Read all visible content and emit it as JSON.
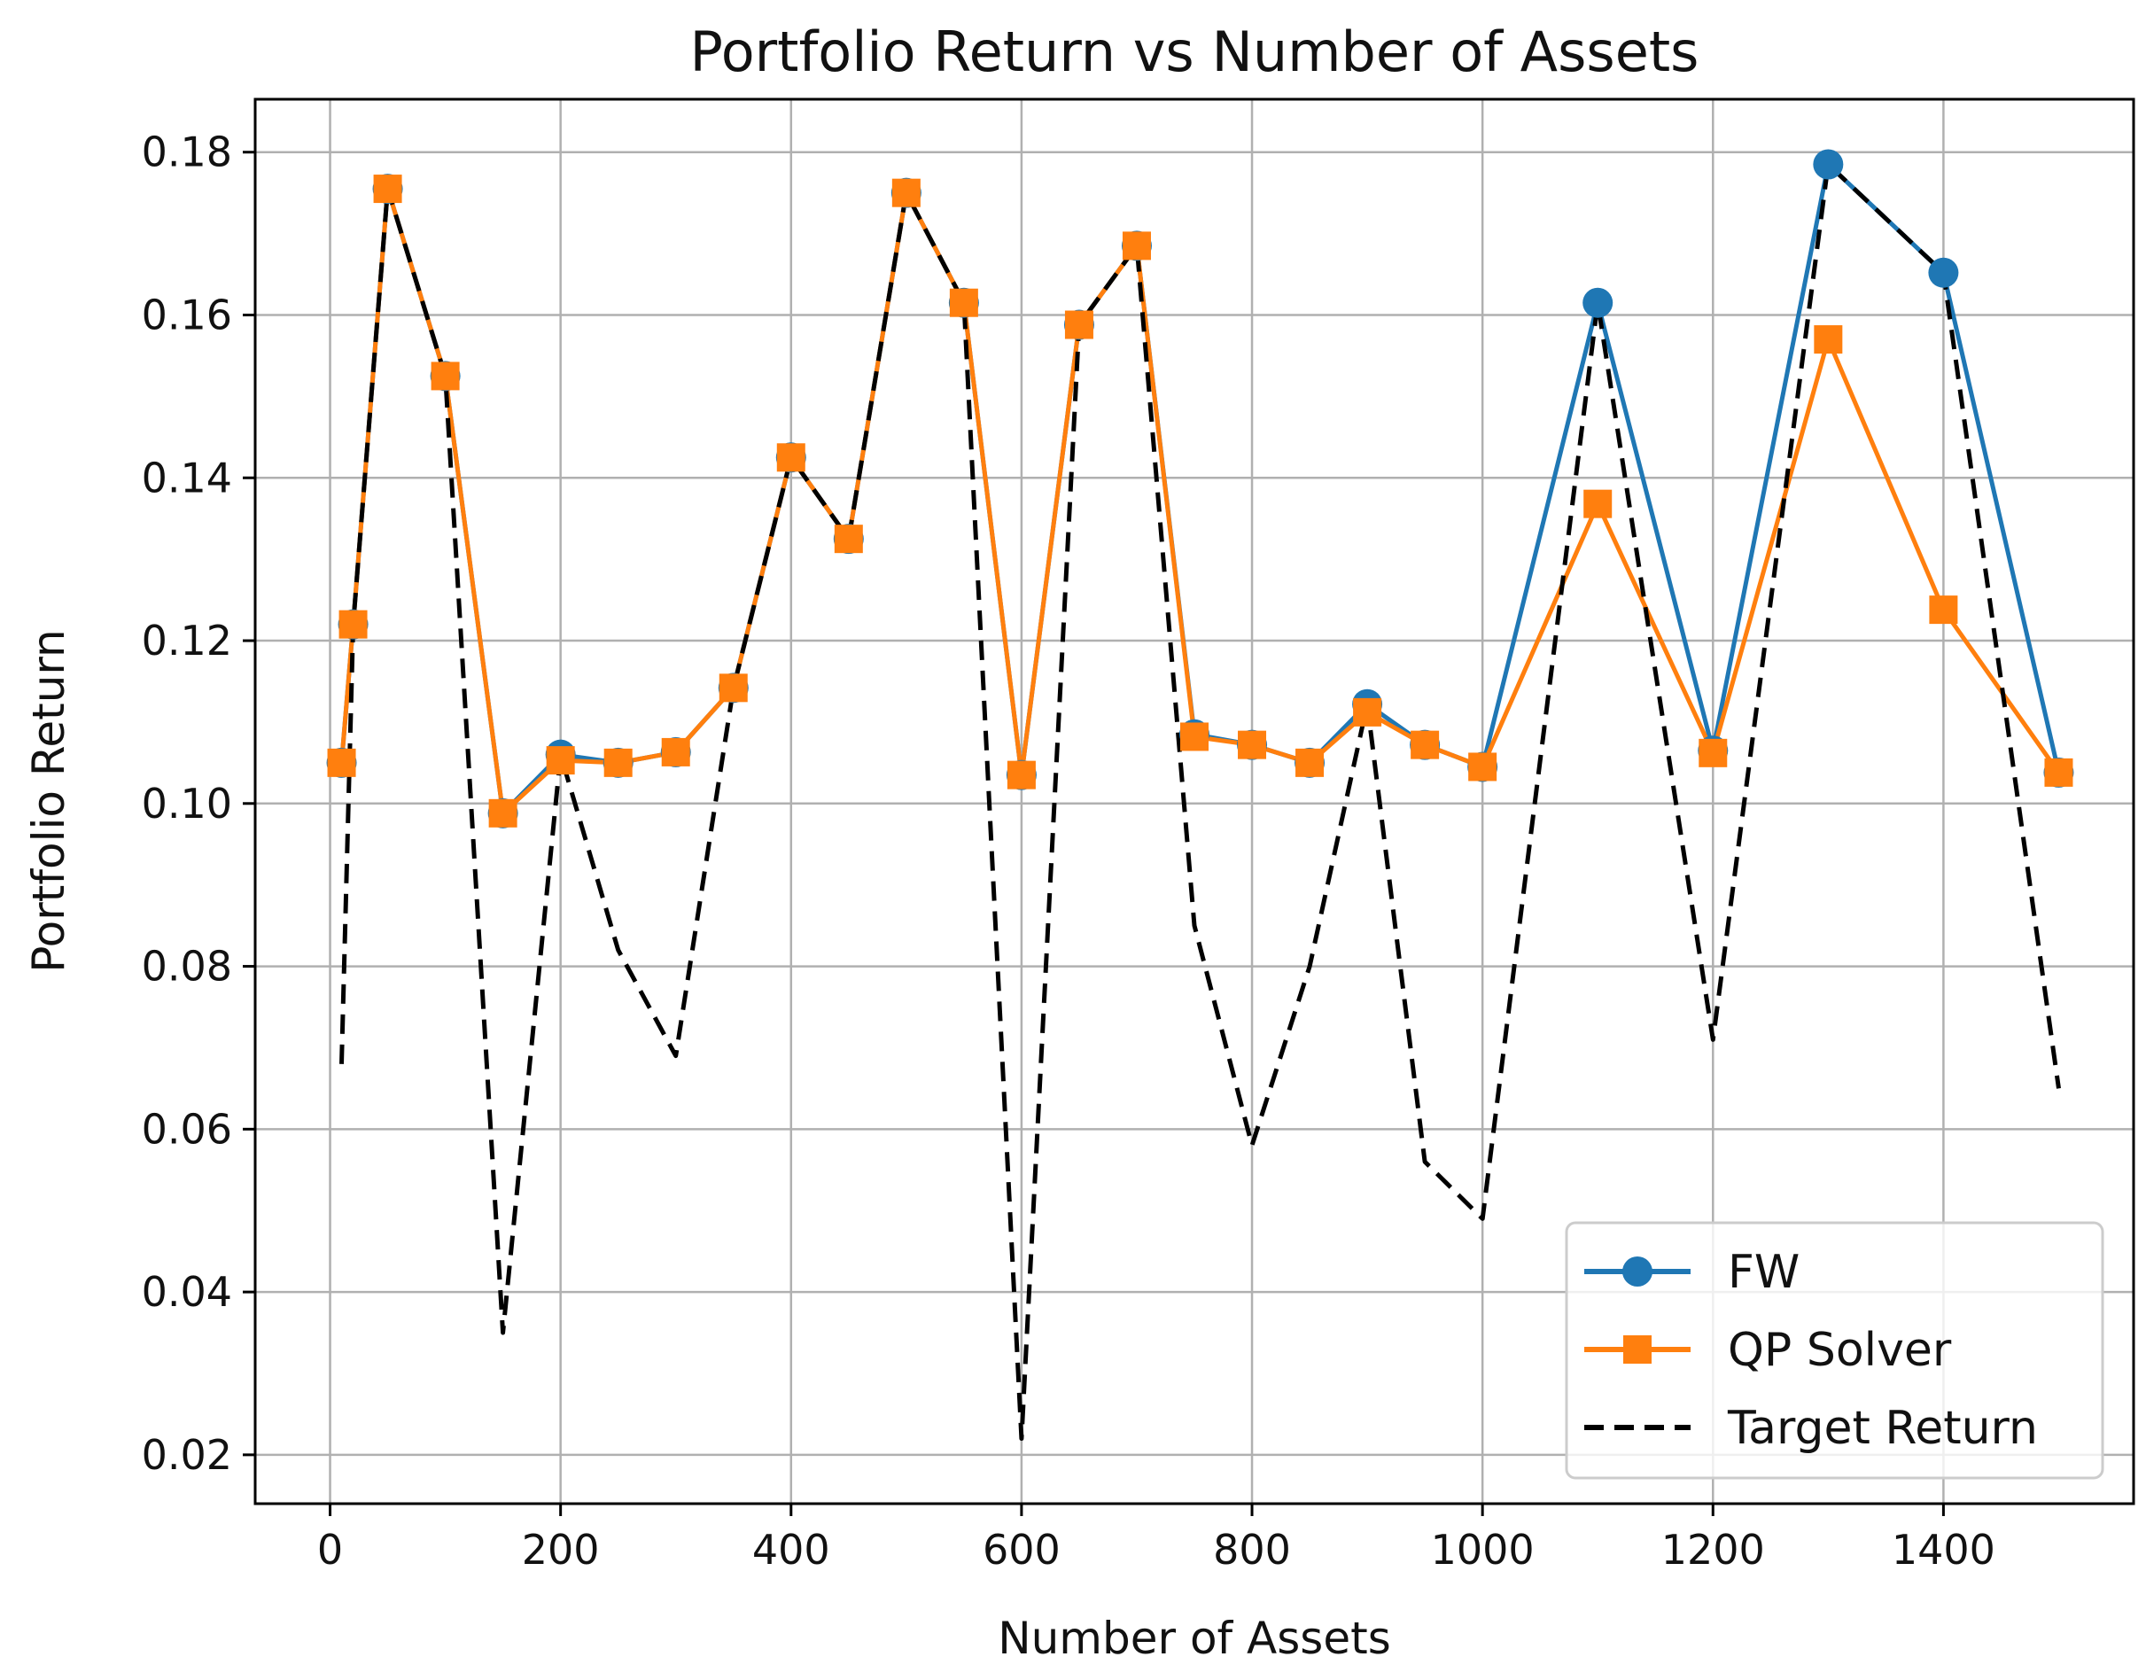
{
  "chart_data": {
    "type": "line",
    "title": "Portfolio Return vs Number of Assets",
    "xlabel": "Number of Assets",
    "ylabel": "Portfolio Return",
    "xlim": [
      -65,
      1565
    ],
    "ylim": [
      0.014,
      0.1865
    ],
    "xticks": [
      0,
      200,
      400,
      600,
      800,
      1000,
      1200,
      1400
    ],
    "yticks": [
      0.02,
      0.04,
      0.06,
      0.08,
      0.1,
      0.12,
      0.14,
      0.16,
      0.18
    ],
    "ytick_labels": [
      "0.02",
      "0.04",
      "0.06",
      "0.08",
      "0.10",
      "0.12",
      "0.14",
      "0.16",
      "0.18"
    ],
    "grid": true,
    "legend_position": "lower-right",
    "x": [
      10,
      20,
      50,
      100,
      150,
      200,
      250,
      300,
      350,
      400,
      450,
      500,
      550,
      600,
      650,
      700,
      750,
      800,
      850,
      900,
      950,
      1000,
      1100,
      1200,
      1300,
      1400,
      1500
    ],
    "series": [
      {
        "name": "FW",
        "color": "#1f77b4",
        "marker": "circle",
        "values": [
          0.105,
          0.122,
          0.1755,
          0.1525,
          0.0988,
          0.106,
          0.105,
          0.1063,
          0.1142,
          0.1425,
          0.1325,
          0.175,
          0.1615,
          0.1035,
          0.1588,
          0.1685,
          0.1085,
          0.1072,
          0.105,
          0.1122,
          0.1072,
          0.1045,
          0.1615,
          0.1065,
          0.1785,
          0.1652,
          0.1038
        ]
      },
      {
        "name": "QP Solver",
        "color": "#ff7f0e",
        "marker": "square",
        "values": [
          0.105,
          0.122,
          0.1755,
          0.1525,
          0.0988,
          0.1053,
          0.105,
          0.1063,
          0.1142,
          0.1425,
          0.1325,
          0.175,
          0.1615,
          0.1035,
          0.1588,
          0.1685,
          0.1082,
          0.1072,
          0.105,
          0.1112,
          0.1072,
          0.1045,
          0.1368,
          0.1062,
          0.157,
          0.1238,
          0.1038
        ]
      },
      {
        "name": "Target Return",
        "color": "#000000",
        "dashed": true,
        "values": [
          0.068,
          0.122,
          0.1755,
          0.1525,
          0.035,
          0.106,
          0.082,
          0.069,
          0.1142,
          0.1425,
          0.1325,
          0.175,
          0.1615,
          0.022,
          0.1588,
          0.1685,
          0.085,
          0.058,
          0.08,
          0.1122,
          0.056,
          0.049,
          0.1615,
          0.071,
          0.1785,
          0.1652,
          0.065
        ]
      }
    ]
  }
}
